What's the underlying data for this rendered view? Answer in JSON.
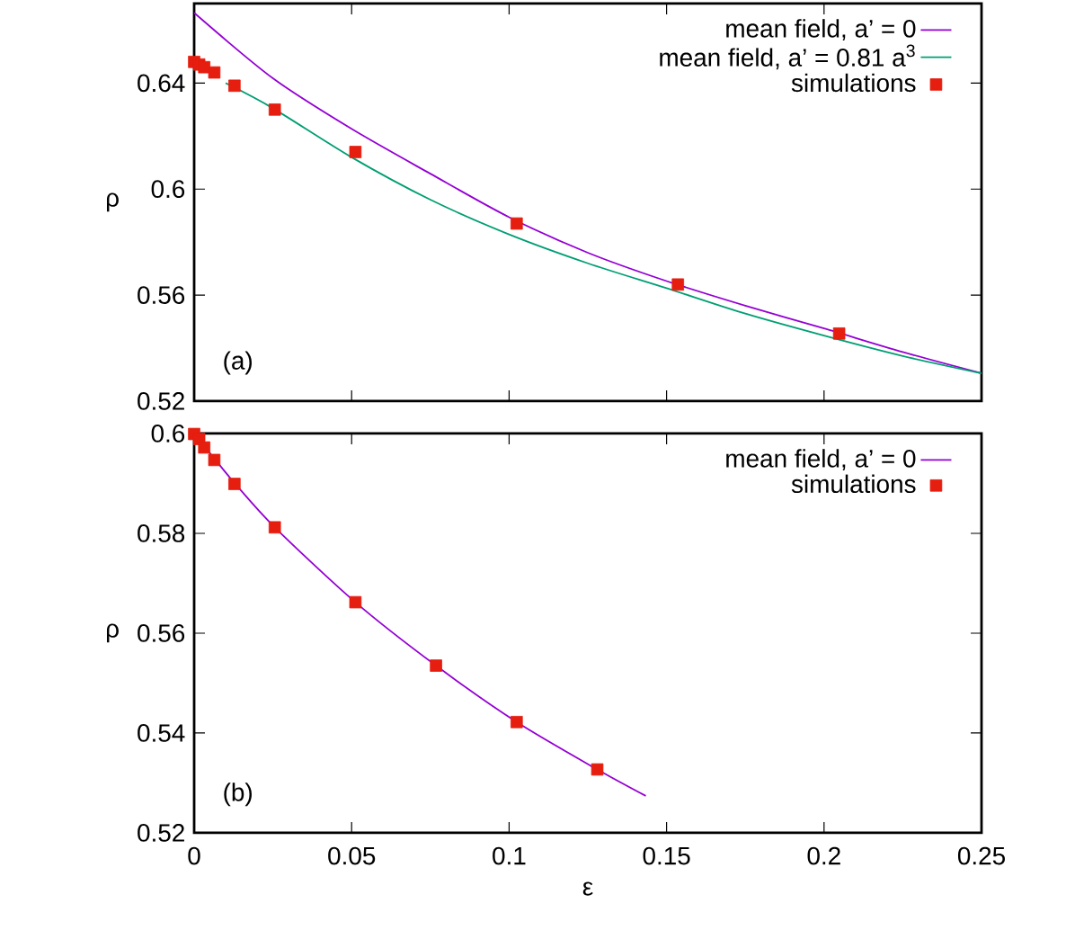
{
  "chart_data": [
    {
      "type": "line",
      "ylabel": "ρ",
      "xlim": [
        0,
        0.25
      ],
      "ylim": [
        0.52,
        0.67
      ],
      "xticks": [
        0,
        0.05,
        0.1,
        0.15,
        0.2,
        0.25
      ],
      "yticks": [
        0.52,
        0.56,
        0.6,
        0.64
      ],
      "tick_labels": "y",
      "legend": "top right",
      "annotations": [
        "(a)"
      ],
      "series": [
        {
          "name": "mean field,  a’ = 0",
          "color": "#9400d3",
          "x": [
            0,
            0.025,
            0.05,
            0.075,
            0.1,
            0.125,
            0.15,
            0.175,
            0.2,
            0.225,
            0.25
          ],
          "values": [
            0.6665,
            0.6418,
            0.6227,
            0.6058,
            0.5894,
            0.576,
            0.5653,
            0.556,
            0.5474,
            0.5385,
            0.5305
          ]
        },
        {
          "name": "mean field,  a’ = 0.81 a$^{3}$",
          "color": "#009e73",
          "x": [
            0.01,
            0.025,
            0.05,
            0.075,
            0.1,
            0.125,
            0.15,
            0.175,
            0.2,
            0.225,
            0.25
          ],
          "values": [
            0.64,
            0.6305,
            0.612,
            0.596,
            0.5829,
            0.572,
            0.5626,
            0.553,
            0.5447,
            0.537,
            0.5305
          ]
        },
        {
          "name": "simulations",
          "type": "scatter",
          "marker": "square",
          "color": "#e51e10",
          "x": [
            0,
            0.0016,
            0.0032,
            0.0064,
            0.0128,
            0.0256,
            0.0512,
            0.1024,
            0.1536,
            0.2048
          ],
          "values": [
            0.648,
            0.647,
            0.646,
            0.644,
            0.639,
            0.63,
            0.614,
            0.587,
            0.564,
            0.5455
          ]
        }
      ]
    },
    {
      "type": "line",
      "xlabel": "ε",
      "ylabel": "ρ",
      "xlim": [
        0,
        0.25
      ],
      "ylim": [
        0.52,
        0.6
      ],
      "xticks": [
        0,
        0.05,
        0.1,
        0.15,
        0.2,
        0.25
      ],
      "yticks": [
        0.52,
        0.54,
        0.56,
        0.58,
        0.6
      ],
      "legend": "top right",
      "annotations": [
        "(b)"
      ],
      "series": [
        {
          "name": "mean field,  a’ = 0",
          "color": "#9400d3",
          "x": [
            0,
            0.0064,
            0.0128,
            0.0256,
            0.0512,
            0.0768,
            0.1024,
            0.128,
            0.1434
          ],
          "values": [
            0.6,
            0.595,
            0.5901,
            0.5812,
            0.5662,
            0.5535,
            0.5422,
            0.5327,
            0.5274
          ]
        },
        {
          "name": "simulations",
          "type": "scatter",
          "marker": "square",
          "color": "#e51e10",
          "x": [
            0,
            0.0016,
            0.0032,
            0.0064,
            0.0128,
            0.0256,
            0.0512,
            0.0768,
            0.1024,
            0.128
          ],
          "values": [
            0.5999,
            0.5989,
            0.5972,
            0.5947,
            0.5899,
            0.5812,
            0.5662,
            0.5535,
            0.5422,
            0.5327
          ]
        }
      ]
    }
  ]
}
